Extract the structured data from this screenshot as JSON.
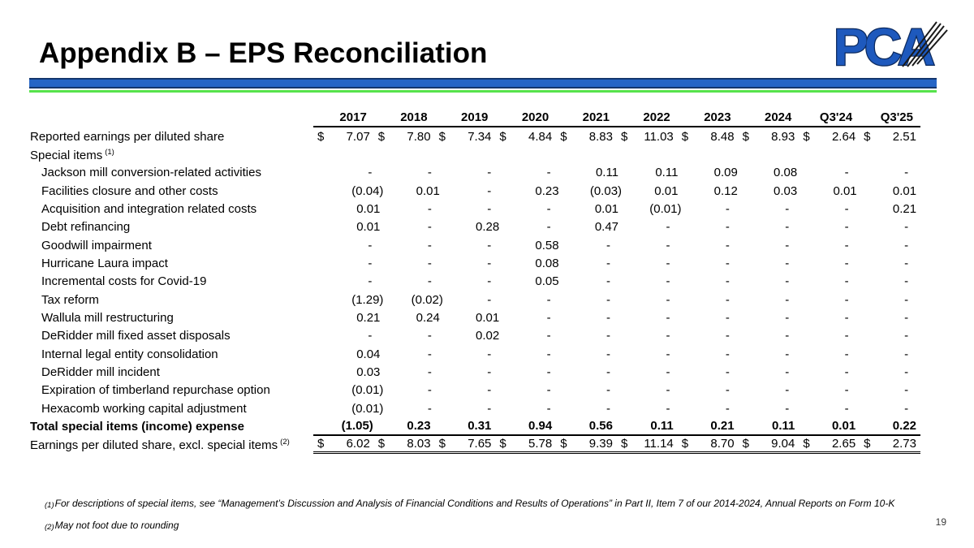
{
  "slide": {
    "title": "Appendix B – EPS Reconciliation",
    "page_number": "19",
    "logo_text": "PCA",
    "accent_colors": {
      "bar_blue": "#2565c6",
      "bar_navy": "#13366d",
      "bar_green": "#57e34b",
      "logo_blue": "#1e59bd"
    }
  },
  "table": {
    "columns": [
      "2017",
      "2018",
      "2019",
      "2020",
      "2021",
      "2022",
      "2023",
      "2024",
      "Q3'24",
      "Q3'25"
    ],
    "rows": [
      {
        "label": "Reported earnings per diluted share",
        "sup": "",
        "indent": false,
        "bold": false,
        "dollar": true,
        "rule_below": false,
        "double_below": false,
        "values": [
          "7.07",
          "7.80",
          "7.34",
          "4.84",
          "8.83",
          "11.03",
          "8.48",
          "8.93",
          "2.64",
          "2.51"
        ]
      },
      {
        "label": "Special items",
        "sup": "(1)",
        "indent": false,
        "bold": false,
        "dollar": false,
        "rule_below": false,
        "double_below": false,
        "values": []
      },
      {
        "label": "Jackson mill conversion-related activities",
        "sup": "",
        "indent": true,
        "bold": false,
        "dollar": false,
        "rule_below": false,
        "double_below": false,
        "values": [
          "-",
          "-",
          "-",
          "-",
          "0.11",
          "0.11",
          "0.09",
          "0.08",
          "-",
          "-"
        ]
      },
      {
        "label": "Facilities closure and other costs",
        "sup": "",
        "indent": true,
        "bold": false,
        "dollar": false,
        "rule_below": false,
        "double_below": false,
        "values": [
          "(0.04)",
          "0.01",
          "-",
          "0.23",
          "(0.03)",
          "0.01",
          "0.12",
          "0.03",
          "0.01",
          "0.01"
        ]
      },
      {
        "label": "Acquisition and integration related costs",
        "sup": "",
        "indent": true,
        "bold": false,
        "dollar": false,
        "rule_below": false,
        "double_below": false,
        "values": [
          "0.01",
          "-",
          "-",
          "-",
          "0.01",
          "(0.01)",
          "-",
          "-",
          "-",
          "0.21"
        ]
      },
      {
        "label": "Debt refinancing",
        "sup": "",
        "indent": true,
        "bold": false,
        "dollar": false,
        "rule_below": false,
        "double_below": false,
        "values": [
          "0.01",
          "-",
          "0.28",
          "-",
          "0.47",
          "-",
          "-",
          "-",
          "-",
          "-"
        ]
      },
      {
        "label": "Goodwill impairment",
        "sup": "",
        "indent": true,
        "bold": false,
        "dollar": false,
        "rule_below": false,
        "double_below": false,
        "values": [
          "-",
          "-",
          "-",
          "0.58",
          "-",
          "-",
          "-",
          "-",
          "-",
          "-"
        ]
      },
      {
        "label": "Hurricane Laura impact",
        "sup": "",
        "indent": true,
        "bold": false,
        "dollar": false,
        "rule_below": false,
        "double_below": false,
        "values": [
          "-",
          "-",
          "-",
          "0.08",
          "-",
          "-",
          "-",
          "-",
          "-",
          "-"
        ]
      },
      {
        "label": "Incremental costs for Covid-19",
        "sup": "",
        "indent": true,
        "bold": false,
        "dollar": false,
        "rule_below": false,
        "double_below": false,
        "values": [
          "-",
          "-",
          "-",
          "0.05",
          "-",
          "-",
          "-",
          "-",
          "-",
          "-"
        ]
      },
      {
        "label": "Tax reform",
        "sup": "",
        "indent": true,
        "bold": false,
        "dollar": false,
        "rule_below": false,
        "double_below": false,
        "values": [
          "(1.29)",
          "(0.02)",
          "-",
          "-",
          "-",
          "-",
          "-",
          "-",
          "-",
          "-"
        ]
      },
      {
        "label": "Wallula mill restructuring",
        "sup": "",
        "indent": true,
        "bold": false,
        "dollar": false,
        "rule_below": false,
        "double_below": false,
        "values": [
          "0.21",
          "0.24",
          "0.01",
          "-",
          "-",
          "-",
          "-",
          "-",
          "-",
          "-"
        ]
      },
      {
        "label": "DeRidder mill fixed asset disposals",
        "sup": "",
        "indent": true,
        "bold": false,
        "dollar": false,
        "rule_below": false,
        "double_below": false,
        "values": [
          "-",
          "-",
          "0.02",
          "-",
          "-",
          "-",
          "-",
          "-",
          "-",
          "-"
        ]
      },
      {
        "label": "Internal legal entity consolidation",
        "sup": "",
        "indent": true,
        "bold": false,
        "dollar": false,
        "rule_below": false,
        "double_below": false,
        "values": [
          "0.04",
          "-",
          "-",
          "-",
          "-",
          "-",
          "-",
          "-",
          "-",
          "-"
        ]
      },
      {
        "label": "DeRidder mill incident",
        "sup": "",
        "indent": true,
        "bold": false,
        "dollar": false,
        "rule_below": false,
        "double_below": false,
        "values": [
          "0.03",
          "-",
          "-",
          "-",
          "-",
          "-",
          "-",
          "-",
          "-",
          "-"
        ]
      },
      {
        "label": "Expiration of timberland repurchase option",
        "sup": "",
        "indent": true,
        "bold": false,
        "dollar": false,
        "rule_below": false,
        "double_below": false,
        "values": [
          "(0.01)",
          "-",
          "-",
          "-",
          "-",
          "-",
          "-",
          "-",
          "-",
          "-"
        ]
      },
      {
        "label": "Hexacomb working capital adjustment",
        "sup": "",
        "indent": true,
        "bold": false,
        "dollar": false,
        "rule_below": false,
        "double_below": false,
        "values": [
          "(0.01)",
          "-",
          "-",
          "-",
          "-",
          "-",
          "-",
          "-",
          "-",
          "-"
        ]
      },
      {
        "label": "Total special items (income) expense",
        "sup": "",
        "indent": false,
        "bold": true,
        "dollar": false,
        "rule_below": true,
        "double_below": false,
        "values": [
          "(1.05)",
          "0.23",
          "0.31",
          "0.94",
          "0.56",
          "0.11",
          "0.21",
          "0.11",
          "0.01",
          "0.22"
        ]
      },
      {
        "label": "Earnings per diluted share, excl. special items",
        "sup": "(2)",
        "indent": false,
        "bold": false,
        "dollar": true,
        "rule_below": false,
        "double_below": true,
        "values": [
          "6.02",
          "8.03",
          "7.65",
          "5.78",
          "9.39",
          "11.14",
          "8.70",
          "9.04",
          "2.65",
          "2.73"
        ]
      }
    ]
  },
  "footnotes": [
    {
      "marker": "(1)",
      "text": "For descriptions of special items, see “Management’s Discussion and Analysis of Financial Conditions and Results of Operations” in Part II, Item 7 of our 2014-2024, Annual Reports on Form 10-K"
    },
    {
      "marker": "(2)",
      "text": "May not foot due to rounding"
    }
  ]
}
